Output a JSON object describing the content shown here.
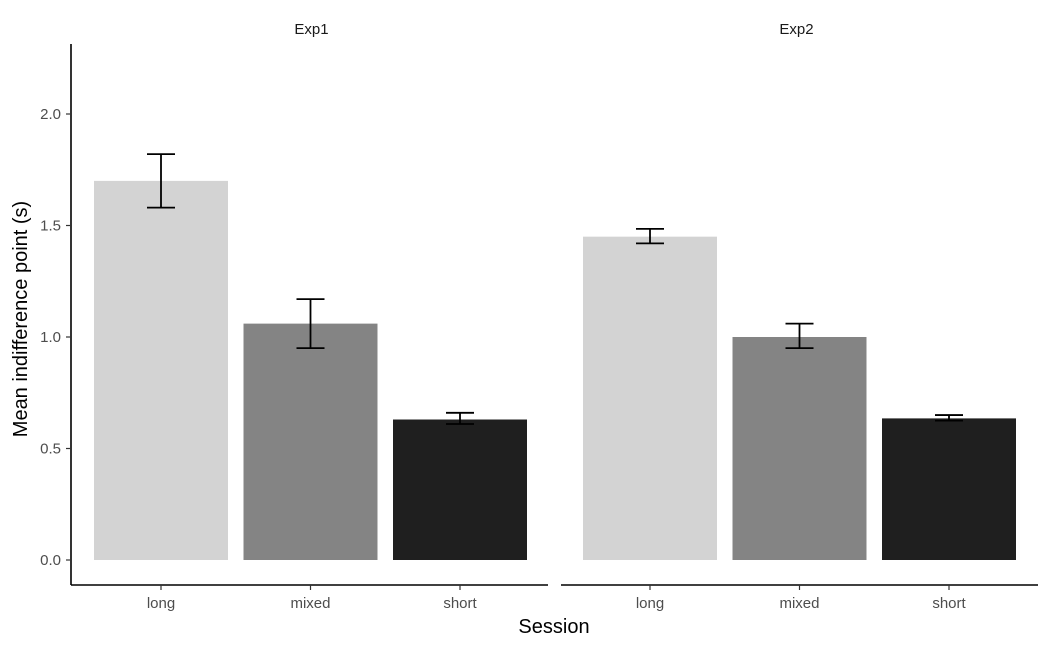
{
  "chart_data": {
    "type": "bar",
    "ylabel": "Mean indifference point (s)",
    "xlabel": "Session",
    "ylim": [
      0,
      2.2
    ],
    "y_ticks": [
      0.0,
      0.5,
      1.0,
      1.5,
      2.0
    ],
    "y_tick_labels": [
      "0.0",
      "0.5",
      "1.0",
      "1.5",
      "2.0"
    ],
    "categories": [
      "long",
      "mixed",
      "short"
    ],
    "category_colors": {
      "long": "#d3d3d3",
      "mixed": "#848484",
      "short": "#1f1f1f"
    },
    "grid": false,
    "legend": "none",
    "panels": [
      {
        "title": "Exp1",
        "values": [
          1.7,
          1.06,
          0.63
        ],
        "error_low": [
          1.58,
          0.95,
          0.61
        ],
        "error_high": [
          1.82,
          1.17,
          0.66
        ]
      },
      {
        "title": "Exp2",
        "values": [
          1.45,
          1.0,
          0.635
        ],
        "error_low": [
          1.42,
          0.95,
          0.625
        ],
        "error_high": [
          1.485,
          1.06,
          0.65
        ]
      }
    ]
  }
}
